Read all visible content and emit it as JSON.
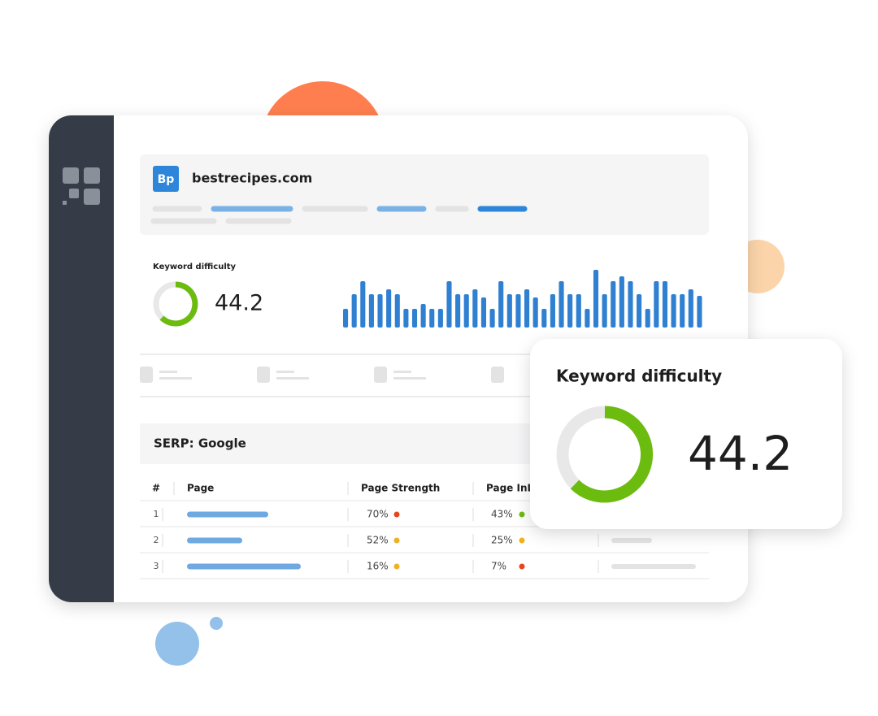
{
  "header": {
    "logo": "Bp",
    "site": "bestrecipes.com"
  },
  "panel": {
    "label": "Keyword difficulty",
    "value": "44.2",
    "bars": {
      "color": "#2f80d1",
      "values": [
        23,
        41,
        57,
        41,
        41,
        47,
        41,
        23,
        23,
        29,
        23,
        23,
        57,
        41,
        41,
        47,
        37,
        23,
        57,
        41,
        41,
        47,
        37,
        23,
        41,
        57,
        41,
        41,
        23,
        71,
        41,
        57,
        63,
        57,
        41,
        23,
        57,
        57,
        41,
        41,
        47,
        39
      ]
    }
  },
  "serp": {
    "title": "SERP: Google",
    "columns": [
      "#",
      "Page",
      "Page Strength",
      "Page InLinks"
    ],
    "rows": [
      {
        "rank": "1",
        "strength": "70%",
        "strength_color": "#e8451d",
        "inlinks": "43%",
        "inlinks_color": "#6cbb0f"
      },
      {
        "rank": "2",
        "strength": "52%",
        "strength_color": "#f2b01e",
        "inlinks": "25%",
        "inlinks_color": "#f2b01e"
      },
      {
        "rank": "3",
        "strength": "16%",
        "strength_color": "#f2b01e",
        "inlinks": "7%",
        "inlinks_color": "#e8451d"
      }
    ]
  },
  "card": {
    "label": "Keyword difficulty",
    "value": "44.2"
  }
}
